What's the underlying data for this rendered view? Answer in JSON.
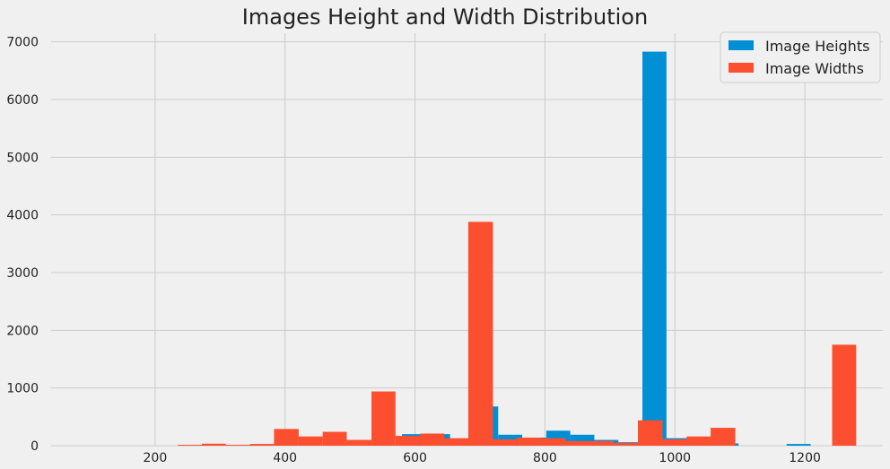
{
  "chart_data": {
    "type": "histogram",
    "title": "Images Height and Width Distribution",
    "xlabel": "",
    "ylabel": "",
    "xlim": [
      40,
      1320
    ],
    "ylim": [
      0,
      7150
    ],
    "xticks": [
      200,
      400,
      600,
      800,
      1000,
      1200
    ],
    "yticks": [
      0,
      1000,
      2000,
      3000,
      4000,
      5000,
      6000,
      7000
    ],
    "grid": true,
    "legend_position": "top-right",
    "series": [
      {
        "name": "Image Heights",
        "color": "#008fd5",
        "bins": [
          {
            "x0": 580,
            "x1": 617,
            "value": 200
          },
          {
            "x0": 617,
            "x1": 654,
            "value": 200
          },
          {
            "x0": 654,
            "x1": 691,
            "value": 120
          },
          {
            "x0": 691,
            "x1": 728,
            "value": 680
          },
          {
            "x0": 728,
            "x1": 765,
            "value": 190
          },
          {
            "x0": 765,
            "x1": 802,
            "value": 140
          },
          {
            "x0": 802,
            "x1": 839,
            "value": 260
          },
          {
            "x0": 839,
            "x1": 876,
            "value": 190
          },
          {
            "x0": 876,
            "x1": 913,
            "value": 100
          },
          {
            "x0": 913,
            "x1": 950,
            "value": 60
          },
          {
            "x0": 950,
            "x1": 987,
            "value": 6830
          },
          {
            "x0": 987,
            "x1": 1024,
            "value": 130
          },
          {
            "x0": 1024,
            "x1": 1061,
            "value": 130
          },
          {
            "x0": 1061,
            "x1": 1098,
            "value": 40
          },
          {
            "x0": 1172,
            "x1": 1209,
            "value": 30
          }
        ]
      },
      {
        "name": "Image Widths",
        "color": "#fc4f30",
        "bins": [
          {
            "x0": 235,
            "x1": 272,
            "value": 15
          },
          {
            "x0": 272,
            "x1": 309,
            "value": 35
          },
          {
            "x0": 309,
            "x1": 346,
            "value": 15
          },
          {
            "x0": 346,
            "x1": 383,
            "value": 30
          },
          {
            "x0": 383,
            "x1": 421,
            "value": 290
          },
          {
            "x0": 421,
            "x1": 458,
            "value": 160
          },
          {
            "x0": 458,
            "x1": 495,
            "value": 240
          },
          {
            "x0": 495,
            "x1": 533,
            "value": 100
          },
          {
            "x0": 533,
            "x1": 570,
            "value": 940
          },
          {
            "x0": 570,
            "x1": 608,
            "value": 170
          },
          {
            "x0": 608,
            "x1": 645,
            "value": 210
          },
          {
            "x0": 645,
            "x1": 682,
            "value": 130
          },
          {
            "x0": 682,
            "x1": 720,
            "value": 3880
          },
          {
            "x0": 720,
            "x1": 757,
            "value": 110
          },
          {
            "x0": 757,
            "x1": 794,
            "value": 140
          },
          {
            "x0": 794,
            "x1": 832,
            "value": 130
          },
          {
            "x0": 832,
            "x1": 869,
            "value": 80
          },
          {
            "x0": 869,
            "x1": 906,
            "value": 80
          },
          {
            "x0": 906,
            "x1": 943,
            "value": 50
          },
          {
            "x0": 943,
            "x1": 981,
            "value": 440
          },
          {
            "x0": 981,
            "x1": 1018,
            "value": 110
          },
          {
            "x0": 1018,
            "x1": 1055,
            "value": 160
          },
          {
            "x0": 1055,
            "x1": 1093,
            "value": 310
          },
          {
            "x0": 1242,
            "x1": 1279,
            "value": 1750
          }
        ]
      }
    ]
  }
}
